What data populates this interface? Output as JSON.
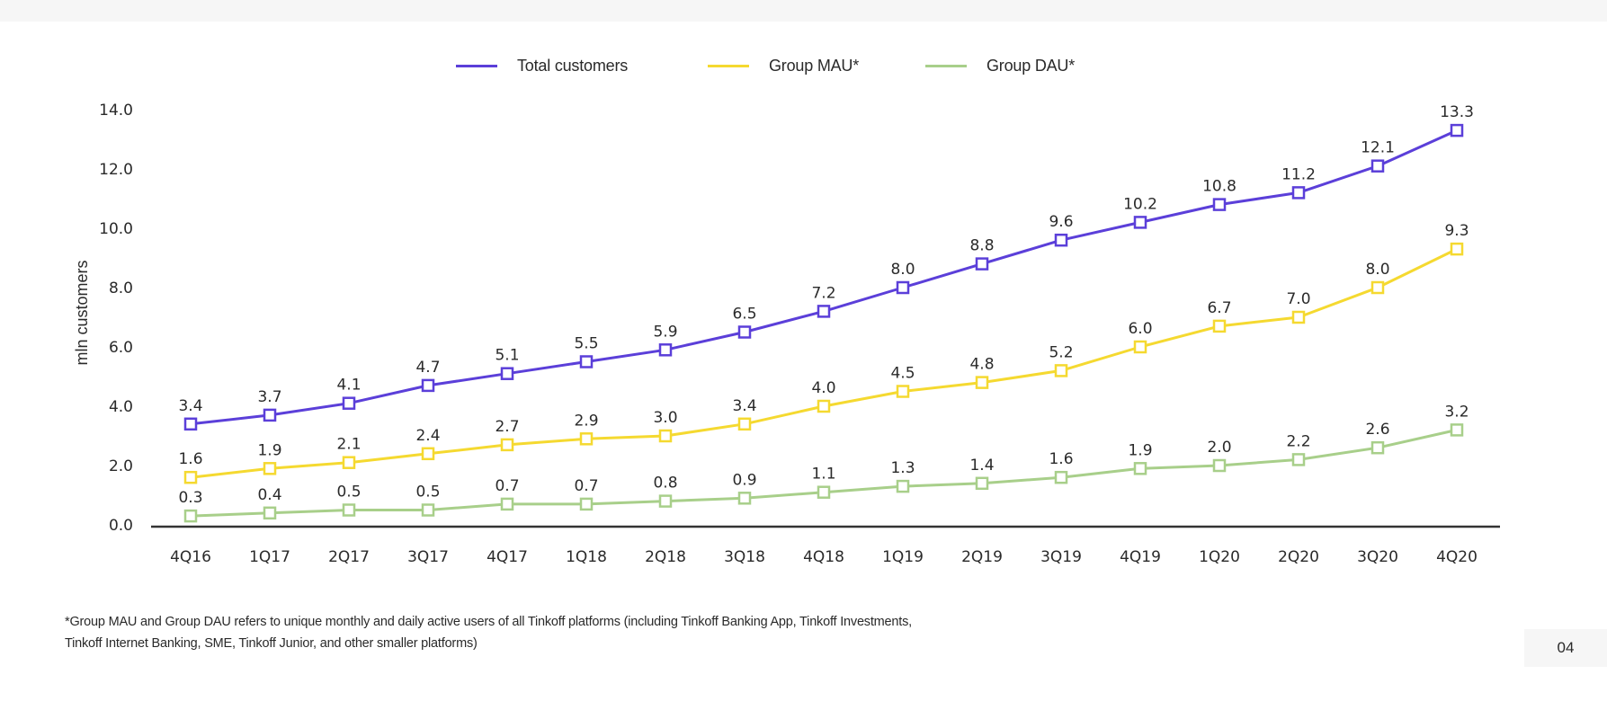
{
  "chart_data": {
    "type": "line",
    "title": "",
    "xlabel": "",
    "ylabel": "mln customers",
    "ylim": [
      0,
      14
    ],
    "yticks": [
      "0.0",
      "2.0",
      "4.0",
      "6.0",
      "8.0",
      "10.0",
      "12.0",
      "14.0"
    ],
    "ytick_values": [
      0,
      2,
      4,
      6,
      8,
      10,
      12,
      14
    ],
    "grid": false,
    "legend_position": "top-center",
    "marker": "hollow-square",
    "categories": [
      "4Q16",
      "1Q17",
      "2Q17",
      "3Q17",
      "4Q17",
      "1Q18",
      "2Q18",
      "3Q18",
      "4Q18",
      "1Q19",
      "2Q19",
      "3Q19",
      "4Q19",
      "1Q20",
      "2Q20",
      "3Q20",
      "4Q20"
    ],
    "series": [
      {
        "name": "Total customers",
        "color": "#5b3fd9",
        "values": [
          3.4,
          3.7,
          4.1,
          4.7,
          5.1,
          5.5,
          5.9,
          6.5,
          7.2,
          8.0,
          8.8,
          9.6,
          10.2,
          10.8,
          11.2,
          12.1,
          13.3
        ]
      },
      {
        "name": "Group MAU*",
        "color": "#f5d930",
        "values": [
          1.6,
          1.9,
          2.1,
          2.4,
          2.7,
          2.9,
          3.0,
          3.4,
          4.0,
          4.5,
          4.8,
          5.2,
          6.0,
          6.7,
          7.0,
          8.0,
          9.3
        ]
      },
      {
        "name": "Group DAU*",
        "color": "#a8cf8a",
        "values": [
          0.3,
          0.4,
          0.5,
          0.5,
          0.7,
          0.7,
          0.8,
          0.9,
          1.1,
          1.3,
          1.4,
          1.6,
          1.9,
          2.0,
          2.2,
          2.6,
          3.2
        ]
      }
    ]
  },
  "legend": [
    {
      "label": "Total customers",
      "color": "#5b3fd9"
    },
    {
      "label": "Group MAU*",
      "color": "#f5d930"
    },
    {
      "label": "Group DAU*",
      "color": "#a8cf8a"
    }
  ],
  "footnote": {
    "line1": "*Group MAU and Group DAU refers to unique monthly and daily active users of all Tinkoff platforms (including Tinkoff Banking App, Tinkoff Investments,",
    "line2": "Tinkoff Internet Banking, SME, Tinkoff Junior, and other smaller platforms)"
  },
  "page_number": "04"
}
